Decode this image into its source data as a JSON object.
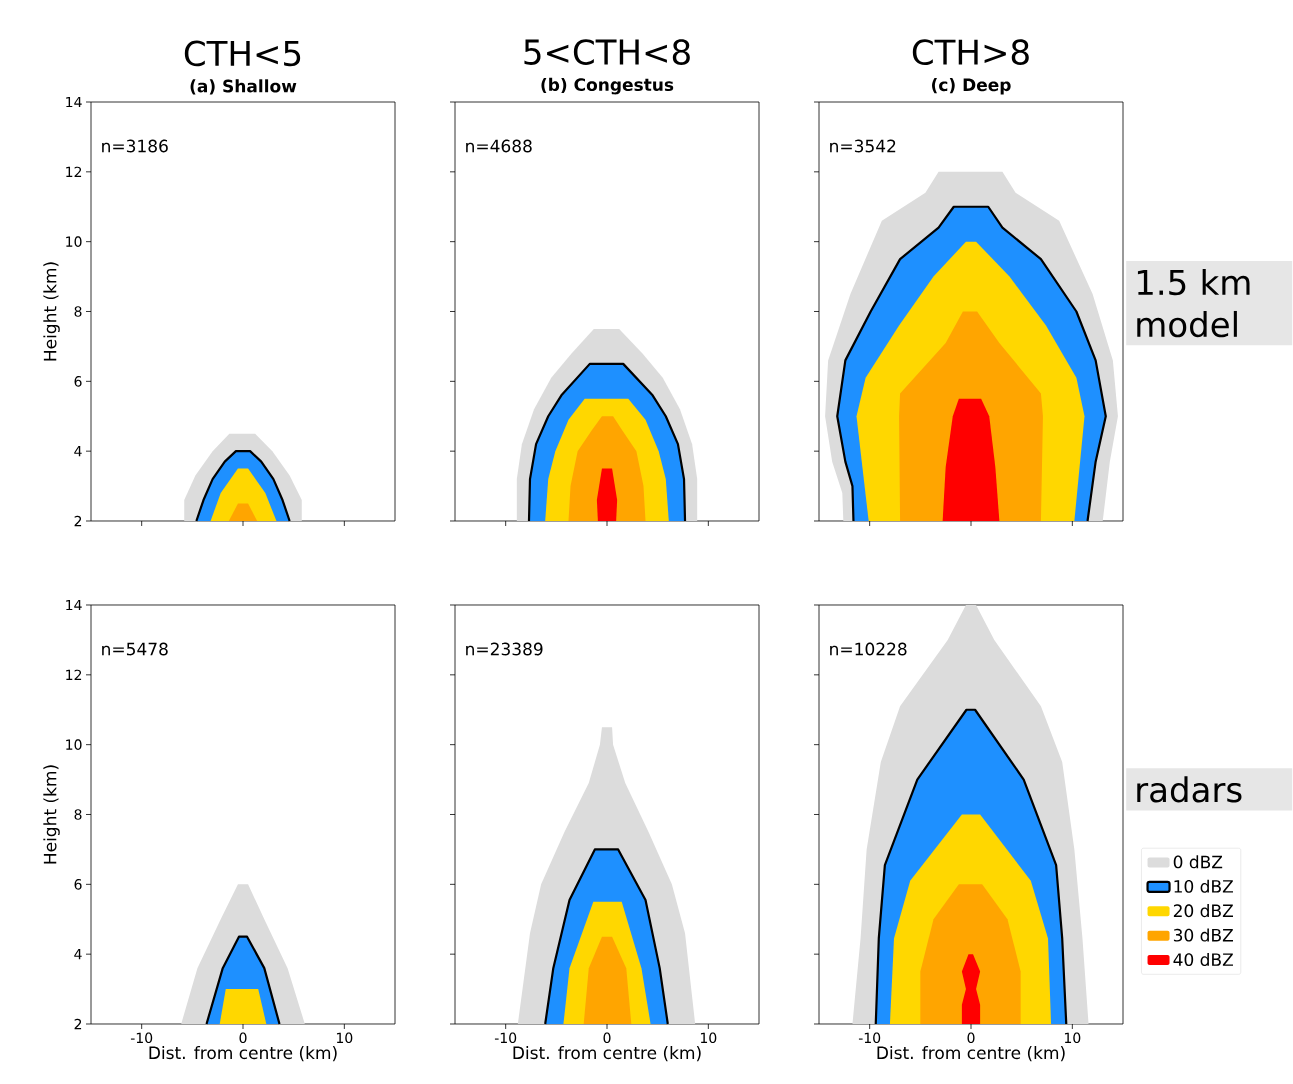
{
  "chart_data": [
    {
      "type": "area",
      "title": "CTH<5",
      "subtitle": "(a) Shallow",
      "ylabel": "Height (km)",
      "xlim": [
        -15,
        15
      ],
      "ylim": [
        2,
        14
      ],
      "xticks": [
        -10,
        0,
        10
      ],
      "yticks": [
        2,
        4,
        6,
        8,
        10,
        12,
        14
      ],
      "tick_labels": "y",
      "annotations": [
        "n=3186"
      ],
      "series": [
        {
          "color": "#dcdcdc",
          "x": [
            -5.8,
            -5.8,
            -4.7,
            -3.0,
            -1.35,
            1.2,
            2.9,
            4.6,
            5.8,
            5.8
          ],
          "values": [
            2,
            2.6,
            3.3,
            4.0,
            4.5,
            4.5,
            4.0,
            3.3,
            2.6,
            2
          ]
        },
        {
          "color": "#1e90ff",
          "line_style": "solid",
          "x": [
            -4.6,
            -3.9,
            -3.0,
            -1.8,
            -0.7,
            0.7,
            1.8,
            3.0,
            3.9,
            4.6
          ],
          "values": [
            2,
            2.6,
            3.2,
            3.7,
            4.0,
            4.0,
            3.7,
            3.2,
            2.6,
            2
          ]
        },
        {
          "color": "#ffd700",
          "x": [
            -3.2,
            -2.2,
            -0.5,
            0.5,
            2.2,
            3.3
          ],
          "values": [
            2,
            2.8,
            3.5,
            3.5,
            2.8,
            2
          ]
        },
        {
          "color": "#ffa500",
          "x": [
            -1.4,
            -0.5,
            0.5,
            1.4
          ],
          "values": [
            2,
            2.5,
            2.5,
            2
          ]
        }
      ]
    },
    {
      "type": "area",
      "title": "5<CTH<8",
      "subtitle": "(b) Congestus",
      "xlim": [
        -15,
        15
      ],
      "ylim": [
        2,
        14
      ],
      "xticks": [
        -10,
        0,
        10
      ],
      "yticks": [
        2,
        4,
        6,
        8,
        10,
        12,
        14
      ],
      "tick_labels": false,
      "annotations": [
        "n=4688"
      ],
      "series": [
        {
          "color": "#dcdcdc",
          "x": [
            -8.9,
            -8.9,
            -8.4,
            -7.2,
            -5.5,
            -3.5,
            -1.3,
            1.2,
            3.5,
            5.5,
            7.2,
            8.4,
            8.9,
            8.9
          ],
          "values": [
            2,
            3.2,
            4.2,
            5.2,
            6.1,
            6.8,
            7.5,
            7.5,
            6.8,
            6.1,
            5.2,
            4.2,
            3.2,
            2
          ]
        },
        {
          "color": "#1e90ff",
          "line_style": "solid",
          "x": [
            -7.7,
            -7.6,
            -7.0,
            -5.8,
            -4.5,
            -1.7,
            1.6,
            4.5,
            5.8,
            7.0,
            7.6,
            7.7
          ],
          "values": [
            2,
            3.2,
            4.2,
            5.0,
            5.6,
            6.5,
            6.5,
            5.6,
            5.0,
            4.2,
            3.2,
            2
          ]
        },
        {
          "color": "#ffd700",
          "x": [
            -6.1,
            -5.8,
            -5.1,
            -3.8,
            -2.2,
            2.1,
            3.8,
            5.1,
            5.8,
            6.1
          ],
          "values": [
            2,
            3.2,
            4.0,
            4.9,
            5.5,
            5.5,
            4.9,
            4.0,
            3.2,
            2
          ]
        },
        {
          "color": "#ffa500",
          "x": [
            -3.8,
            -3.6,
            -2.9,
            -1.5,
            -0.5,
            0.6,
            1.5,
            2.9,
            3.6,
            3.8
          ],
          "values": [
            2,
            3.0,
            4.0,
            4.6,
            5.0,
            5.0,
            4.6,
            4.0,
            3.0,
            2
          ]
        },
        {
          "color": "#ff0000",
          "x": [
            -0.9,
            -1.0,
            -0.5,
            0.5,
            1.0,
            0.9
          ],
          "values": [
            2,
            2.6,
            3.5,
            3.5,
            2.6,
            2
          ]
        }
      ]
    },
    {
      "type": "area",
      "title": "CTH>8",
      "subtitle": "(c) Deep",
      "xlim": [
        -15,
        15
      ],
      "ylim": [
        2,
        14
      ],
      "xticks": [
        -10,
        0,
        10
      ],
      "yticks": [
        2,
        4,
        6,
        8,
        10,
        12,
        14
      ],
      "tick_labels": false,
      "annotations": [
        "n=3542",
        "1.5 km model"
      ],
      "series": [
        {
          "color": "#dcdcdc",
          "x": [
            -12.6,
            -12.7,
            -13.7,
            -14.4,
            -14.1,
            -11.9,
            -8.8,
            -4.5,
            -3.2,
            3.1,
            4.4,
            8.7,
            12.0,
            14.0,
            14.5,
            13.7,
            13.0
          ],
          "values": [
            2,
            2.8,
            3.7,
            5.0,
            6.6,
            8.5,
            10.6,
            11.4,
            12.0,
            12.0,
            11.4,
            10.6,
            8.5,
            6.6,
            5.0,
            3.7,
            2
          ]
        },
        {
          "color": "#1e90ff",
          "line_style": "solid",
          "x": [
            -11.6,
            -11.7,
            -12.4,
            -13.2,
            -12.4,
            -9.9,
            -7.0,
            -3.2,
            -1.7,
            1.7,
            3.1,
            6.9,
            10.4,
            12.3,
            13.3,
            12.3,
            11.5
          ],
          "values": [
            2,
            3.0,
            3.7,
            5.0,
            6.6,
            8.0,
            9.5,
            10.4,
            11.0,
            11.0,
            10.4,
            9.5,
            8.0,
            6.6,
            5.0,
            3.7,
            2
          ]
        },
        {
          "color": "#ffd700",
          "x": [
            -10.1,
            -11.3,
            -10.4,
            -7.1,
            -3.7,
            -0.5,
            0.5,
            3.8,
            7.4,
            10.4,
            11.2,
            10.2
          ],
          "values": [
            2,
            5.0,
            6.1,
            7.6,
            9.0,
            10.0,
            10.0,
            9.0,
            7.6,
            6.1,
            5.0,
            2
          ]
        },
        {
          "color": "#ffa500",
          "x": [
            -7.0,
            -7.1,
            -7.0,
            -2.5,
            -0.8,
            0.6,
            2.8,
            6.9,
            7.1,
            6.9
          ],
          "values": [
            2,
            5.0,
            5.65,
            7.1,
            8.0,
            8.0,
            7.1,
            5.65,
            5.0,
            2
          ]
        },
        {
          "color": "#ff0000",
          "x": [
            -2.8,
            -2.5,
            -1.8,
            -1.2,
            1.0,
            1.8,
            2.4,
            2.8
          ],
          "values": [
            2,
            3.55,
            5.0,
            5.5,
            5.5,
            5.0,
            3.55,
            2
          ]
        }
      ]
    },
    {
      "type": "area",
      "xlabel": "Dist. from centre (km)",
      "ylabel": "Height (km)",
      "xlim": [
        -15,
        15
      ],
      "ylim": [
        2,
        14
      ],
      "xticks": [
        -10,
        0,
        10
      ],
      "yticks": [
        2,
        4,
        6,
        8,
        10,
        12,
        14
      ],
      "annotations": [
        "n=5478"
      ],
      "series": [
        {
          "color": "#dcdcdc",
          "x": [
            -6.1,
            -4.5,
            -2.2,
            -0.5,
            0.5,
            2.1,
            4.4,
            6.1
          ],
          "values": [
            2,
            3.6,
            5.0,
            6.0,
            6.0,
            5.0,
            3.6,
            2
          ]
        },
        {
          "color": "#1e90ff",
          "line_style": "solid",
          "x": [
            -3.6,
            -2.0,
            -0.4,
            0.4,
            2.1,
            3.6
          ],
          "values": [
            2,
            3.6,
            4.5,
            4.5,
            3.6,
            2
          ]
        },
        {
          "color": "#ffd700",
          "x": [
            -2.3,
            -1.7,
            1.5,
            2.3
          ],
          "values": [
            2,
            3.0,
            3.0,
            2
          ]
        }
      ]
    },
    {
      "type": "area",
      "xlabel": "Dist. from centre (km)",
      "xlim": [
        -15,
        15
      ],
      "ylim": [
        2,
        14
      ],
      "xticks": [
        -10,
        0,
        10
      ],
      "yticks": [
        2,
        4,
        6,
        8,
        10,
        12,
        14
      ],
      "tick_labels": "x",
      "annotations": [
        "n=23389"
      ],
      "series": [
        {
          "color": "#dcdcdc",
          "x": [
            -8.8,
            -7.6,
            -6.5,
            -4.2,
            -1.8,
            -0.7,
            -0.5,
            0.5,
            0.6,
            1.8,
            4.1,
            6.4,
            7.7,
            8.7
          ],
          "values": [
            2,
            4.6,
            6.0,
            7.5,
            8.9,
            10.0,
            10.5,
            10.5,
            10.0,
            8.9,
            7.5,
            6.0,
            4.6,
            2
          ]
        },
        {
          "color": "#1e90ff",
          "line_style": "solid",
          "x": [
            -6.1,
            -5.3,
            -3.7,
            -1.2,
            1.1,
            3.8,
            5.2,
            6.0
          ],
          "values": [
            2,
            3.6,
            5.55,
            7.0,
            7.0,
            5.55,
            3.6,
            2
          ]
        },
        {
          "color": "#ffd700",
          "x": [
            -4.3,
            -3.7,
            -1.35,
            1.45,
            3.4,
            4.3
          ],
          "values": [
            2,
            3.6,
            5.5,
            5.5,
            3.6,
            2
          ]
        },
        {
          "color": "#ffa500",
          "x": [
            -2.3,
            -1.8,
            -0.5,
            0.5,
            1.9,
            2.4
          ],
          "values": [
            2,
            3.6,
            4.5,
            4.5,
            3.6,
            2
          ]
        }
      ]
    },
    {
      "type": "area",
      "xlabel": "Dist. from centre (km)",
      "xlim": [
        -15,
        15
      ],
      "ylim": [
        2,
        14
      ],
      "xticks": [
        -10,
        0,
        10
      ],
      "yticks": [
        2,
        4,
        6,
        8,
        10,
        12,
        14
      ],
      "tick_labels": "x",
      "legend": "right",
      "annotations": [
        "n=10228",
        "radars"
      ],
      "series": [
        {
          "name": "0 dBZ",
          "color": "#dcdcdc",
          "x": [
            -11.7,
            -10.9,
            -10.3,
            -8.9,
            -7.0,
            -2.3,
            -0.5,
            0.5,
            2.3,
            6.9,
            9.0,
            10.2,
            11.0,
            11.6
          ],
          "values": [
            2,
            4.45,
            7.0,
            9.5,
            11.1,
            13.0,
            14,
            14,
            13.0,
            11.1,
            9.5,
            7.0,
            4.45,
            2
          ]
        },
        {
          "name": "10 dBZ",
          "color": "#1e90ff",
          "line_style": "solid",
          "x": [
            -9.4,
            -9.1,
            -8.5,
            -5.3,
            -0.45,
            0.4,
            5.2,
            8.4,
            9.0,
            9.4
          ],
          "values": [
            2,
            4.45,
            6.55,
            9.0,
            11.0,
            11.0,
            9.0,
            6.55,
            4.45,
            2
          ]
        },
        {
          "name": "20 dBZ",
          "color": "#ffd700",
          "x": [
            -8.0,
            -7.6,
            -6.0,
            -0.9,
            0.9,
            5.9,
            7.6,
            7.9
          ],
          "values": [
            2,
            4.45,
            6.1,
            8.0,
            8.0,
            6.1,
            4.45,
            2
          ]
        },
        {
          "name": "30 dBZ",
          "color": "#ffa500",
          "x": [
            -5.0,
            -5.0,
            -3.7,
            -1.2,
            1.1,
            3.6,
            4.9,
            4.9
          ],
          "values": [
            2,
            3.5,
            5.0,
            6.0,
            6.0,
            5.0,
            3.5,
            2
          ]
        },
        {
          "name": "40 dBZ",
          "color": "#ff0000",
          "x": [
            -0.9,
            -0.9,
            -0.5,
            -0.9,
            -0.25,
            0.2,
            0.9,
            0.5,
            0.9,
            0.9
          ],
          "values": [
            2,
            2.55,
            3.0,
            3.5,
            4.0,
            4.0,
            3.5,
            3.0,
            2.55,
            2
          ]
        }
      ]
    }
  ]
}
